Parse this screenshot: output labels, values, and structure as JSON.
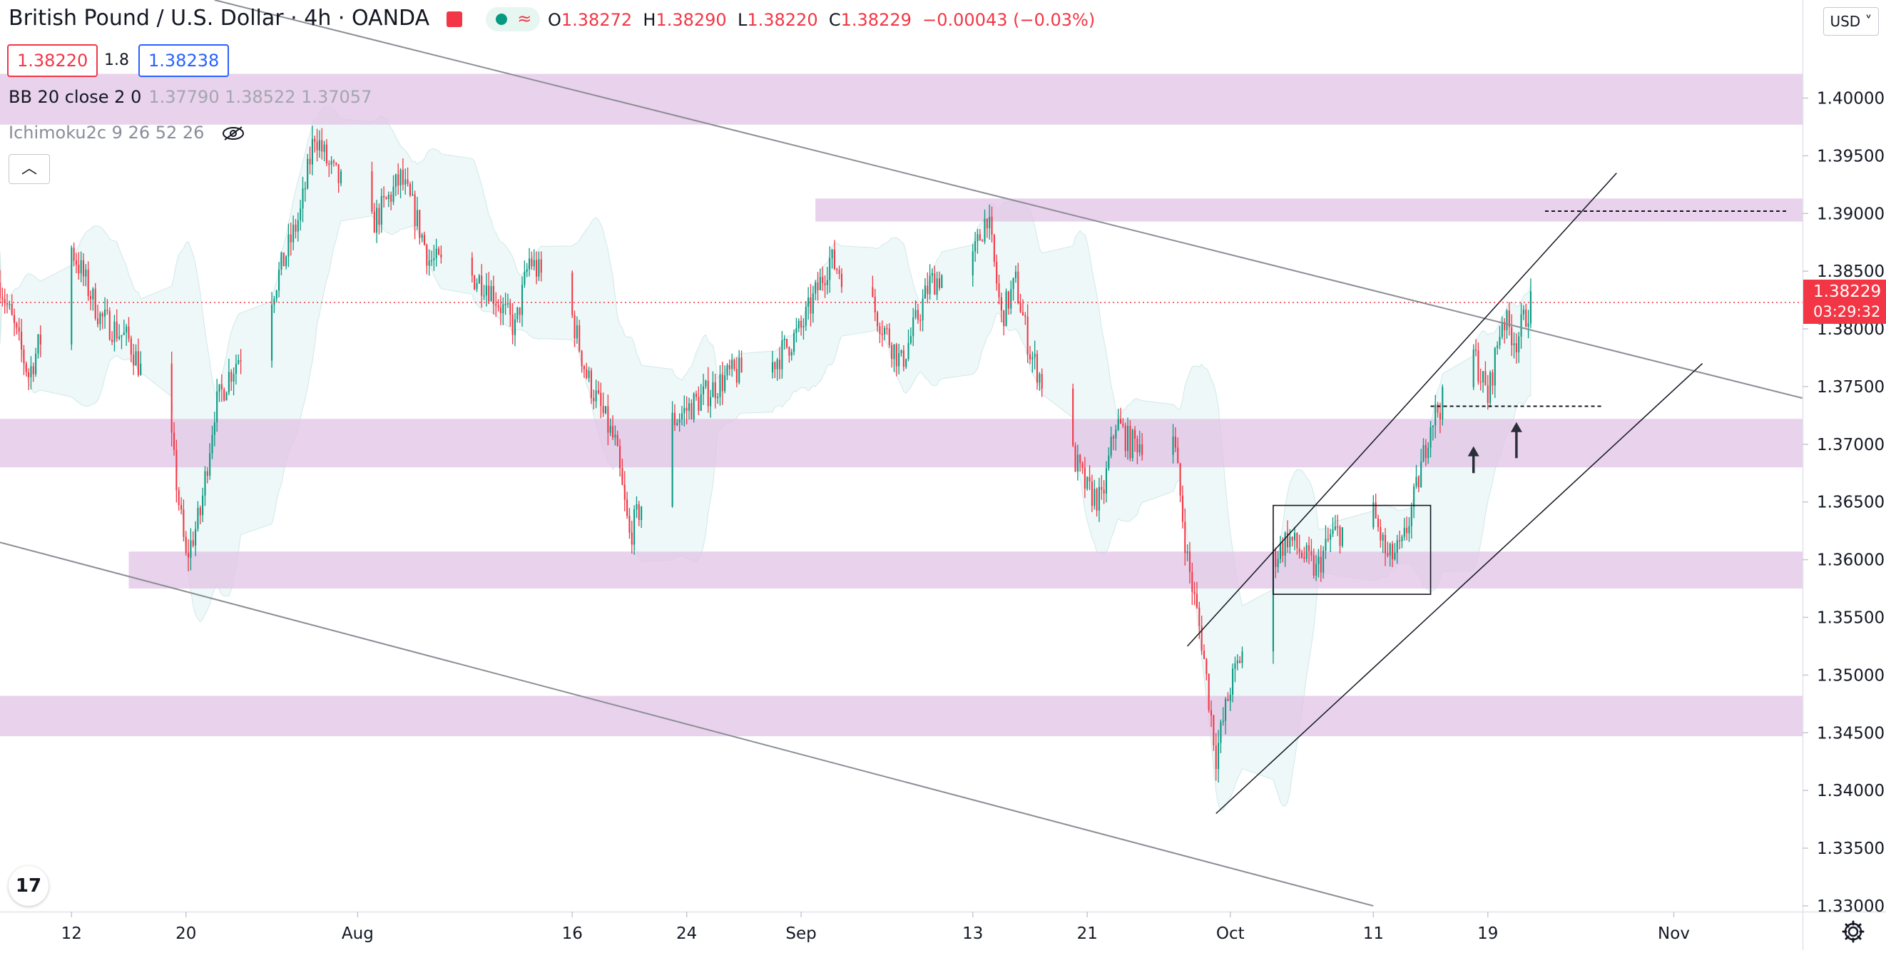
{
  "header": {
    "symbol": "British Pound / U.S. Dollar",
    "interval": "4h",
    "exchange": "OANDA",
    "status_icon": "market-closed-icon",
    "ohlc": {
      "o_label": "O",
      "o": "1.38272",
      "h_label": "H",
      "h": "1.38290",
      "l_label": "L",
      "l": "1.38220",
      "c_label": "C",
      "c": "1.38229",
      "change": "−0.00043 (−0.03%)"
    }
  },
  "quote": {
    "bid": "1.38220",
    "spread": "1.8",
    "ask": "1.38238"
  },
  "indicators": {
    "bb": {
      "label": "BB 20 close 2 0",
      "values": "1.37790  1.38522  1.37057"
    },
    "ichimoku": {
      "label": "Ichimoku2c 9 26 52 26",
      "visibility_icon": "eye-off-icon"
    }
  },
  "collapse_icon": "chevron-up-icon",
  "currency_selector": "USD",
  "last_price": {
    "price": "1.38229",
    "countdown": "03:29:32"
  },
  "colors": {
    "up": "#089981",
    "down": "#f23645",
    "zone": "#e1c3e6",
    "bb_fill": "#d9f0ef",
    "trendline": "#8b8e95",
    "channel": "#131722"
  },
  "chart_data": {
    "type": "candlestick",
    "timeframe": "4h",
    "y_axis": {
      "range": [
        1.3295,
        1.4085
      ],
      "ticks": [
        "1.40000",
        "1.39500",
        "1.39000",
        "1.38500",
        "1.38000",
        "1.37500",
        "1.37000",
        "1.36500",
        "1.36000",
        "1.35500",
        "1.35000",
        "1.34500",
        "1.34000",
        "1.33500",
        "1.33000"
      ]
    },
    "x_axis": {
      "ticks": [
        {
          "label": "12",
          "date": "2021-07-12"
        },
        {
          "label": "20",
          "date": "2021-07-20"
        },
        {
          "label": "Aug",
          "date": "2021-08-01"
        },
        {
          "label": "16",
          "date": "2021-08-16"
        },
        {
          "label": "24",
          "date": "2021-08-24"
        },
        {
          "label": "Sep",
          "date": "2021-09-01"
        },
        {
          "label": "13",
          "date": "2021-09-13"
        },
        {
          "label": "21",
          "date": "2021-09-21"
        },
        {
          "label": "Oct",
          "date": "2021-10-01"
        },
        {
          "label": "11",
          "date": "2021-10-11"
        },
        {
          "label": "19",
          "date": "2021-10-19"
        },
        {
          "label": "Nov",
          "date": "2021-11-01"
        }
      ]
    },
    "price_path": [
      [
        "2021-07-07",
        1.384
      ],
      [
        "2021-07-09",
        1.376
      ],
      [
        "2021-07-12",
        1.387
      ],
      [
        "2021-07-14",
        1.381
      ],
      [
        "2021-07-16",
        1.379
      ],
      [
        "2021-07-19",
        1.37
      ],
      [
        "2021-07-20",
        1.36
      ],
      [
        "2021-07-21",
        1.364
      ],
      [
        "2021-07-22",
        1.373
      ],
      [
        "2021-07-23",
        1.376
      ],
      [
        "2021-07-26",
        1.383
      ],
      [
        "2021-07-28",
        1.39
      ],
      [
        "2021-07-29",
        1.397
      ],
      [
        "2021-07-30",
        1.394
      ],
      [
        "2021-08-02",
        1.389
      ],
      [
        "2021-08-04",
        1.393
      ],
      [
        "2021-08-05",
        1.39
      ],
      [
        "2021-08-06",
        1.386
      ],
      [
        "2021-08-10",
        1.384
      ],
      [
        "2021-08-12",
        1.38
      ],
      [
        "2021-08-13",
        1.386
      ],
      [
        "2021-08-16",
        1.381
      ],
      [
        "2021-08-17",
        1.376
      ],
      [
        "2021-08-19",
        1.37
      ],
      [
        "2021-08-20",
        1.362
      ],
      [
        "2021-08-23",
        1.372
      ],
      [
        "2021-08-25",
        1.374
      ],
      [
        "2021-08-27",
        1.376
      ],
      [
        "2021-08-30",
        1.377
      ],
      [
        "2021-09-01",
        1.38
      ],
      [
        "2021-09-03",
        1.386
      ],
      [
        "2021-09-06",
        1.382
      ],
      [
        "2021-09-08",
        1.377
      ],
      [
        "2021-09-10",
        1.384
      ],
      [
        "2021-09-13",
        1.386
      ],
      [
        "2021-09-14",
        1.39
      ],
      [
        "2021-09-15",
        1.381
      ],
      [
        "2021-09-16",
        1.384
      ],
      [
        "2021-09-17",
        1.378
      ],
      [
        "2021-09-20",
        1.369
      ],
      [
        "2021-09-21",
        1.366
      ],
      [
        "2021-09-22",
        1.365
      ],
      [
        "2021-09-23",
        1.372
      ],
      [
        "2021-09-24",
        1.37
      ],
      [
        "2021-09-27",
        1.371
      ],
      [
        "2021-09-28",
        1.36
      ],
      [
        "2021-09-29",
        1.353
      ],
      [
        "2021-09-30",
        1.343
      ],
      [
        "2021-10-01",
        1.349
      ],
      [
        "2021-10-04",
        1.36
      ],
      [
        "2021-10-05",
        1.362
      ],
      [
        "2021-10-07",
        1.359
      ],
      [
        "2021-10-08",
        1.362
      ],
      [
        "2021-10-11",
        1.364
      ],
      [
        "2021-10-12",
        1.36
      ],
      [
        "2021-10-13",
        1.361
      ],
      [
        "2021-10-14",
        1.366
      ],
      [
        "2021-10-15",
        1.372
      ],
      [
        "2021-10-18",
        1.378
      ],
      [
        "2021-10-19",
        1.374
      ],
      [
        "2021-10-20",
        1.381
      ],
      [
        "2021-10-21",
        1.379
      ],
      [
        "2021-10-22",
        1.3823
      ]
    ],
    "annotations": {
      "zones": [
        {
          "from": "2021-07-07",
          "to": "2021-11-10",
          "high": 1.4021,
          "low": 1.3977
        },
        {
          "from": "2021-09-02",
          "to": "2021-11-10",
          "high": 1.3913,
          "low": 1.3893
        },
        {
          "from": "2021-07-07",
          "to": "2021-11-10",
          "high": 1.3722,
          "low": 1.368
        },
        {
          "from": "2021-07-16",
          "to": "2021-11-10",
          "high": 1.3607,
          "low": 1.3575
        },
        {
          "from": "2021-07-07",
          "to": "2021-11-10",
          "high": 1.3482,
          "low": 1.3447
        }
      ],
      "trendlines": [
        {
          "from": [
            "2021-07-22",
            1.4085
          ],
          "to": [
            "2021-11-10",
            1.374
          ]
        },
        {
          "from": [
            "2021-07-07",
            1.3615
          ],
          "to": [
            "2021-10-11",
            1.33
          ]
        }
      ],
      "channel": [
        {
          "from": [
            "2021-09-28",
            1.3525
          ],
          "to": [
            "2021-10-28",
            1.3935
          ]
        },
        {
          "from": [
            "2021-09-30",
            1.338
          ],
          "to": [
            "2021-11-03",
            1.377
          ]
        }
      ],
      "range_box": {
        "from": "2021-10-04",
        "to": "2021-10-15",
        "high": 1.3647,
        "low": 1.357
      },
      "dashed_levels": [
        {
          "from": "2021-10-15",
          "to": "2021-10-27",
          "price": 1.3733
        },
        {
          "from": "2021-10-23",
          "to": "2021-11-09",
          "price": 1.3902
        }
      ],
      "arrows": [
        {
          "date": "2021-10-18",
          "from": 1.3675,
          "to": 1.3697
        },
        {
          "date": "2021-10-21",
          "from": 1.3688,
          "to": 1.3718
        }
      ]
    }
  }
}
